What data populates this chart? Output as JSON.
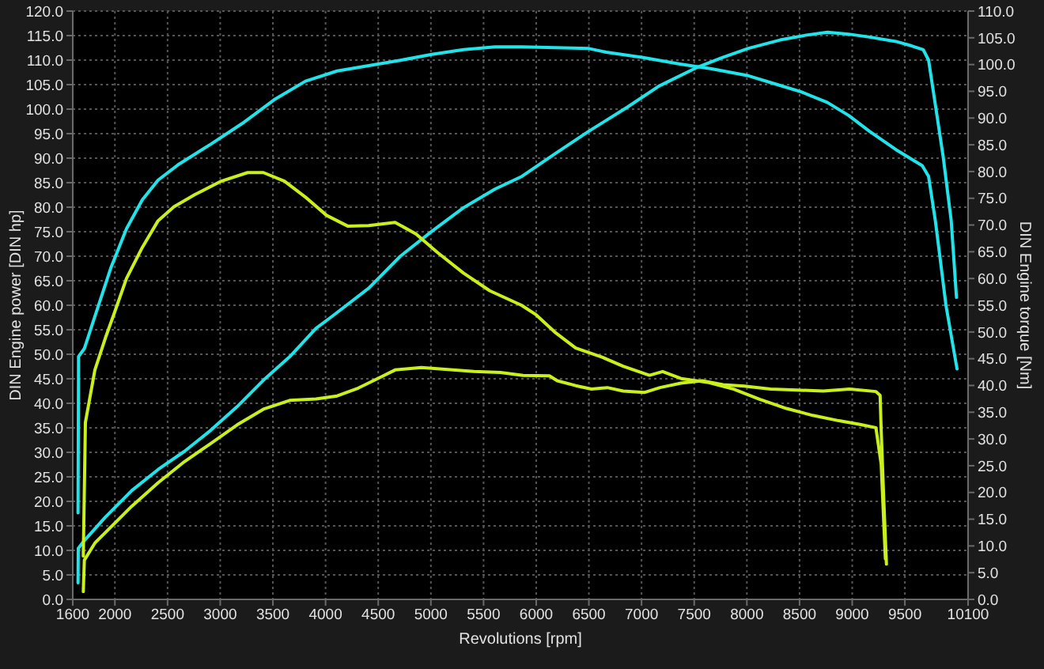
{
  "chart_data": {
    "type": "line",
    "xlabel": "Revolutions [rpm]",
    "ylabel": "DIN Engine power [DIN hp]",
    "y2label": "DIN Engine torque [Nm]",
    "xlim": [
      1600,
      10100
    ],
    "xticks": [
      1600,
      2000,
      2500,
      3000,
      3500,
      4000,
      4500,
      5000,
      5500,
      6000,
      6500,
      7000,
      7500,
      8000,
      8500,
      9000,
      9500,
      10100
    ],
    "ylim": [
      0,
      120
    ],
    "yticks": [
      {
        "value": 0,
        "label": "0.0"
      },
      {
        "value": 5,
        "label": "5.0"
      },
      {
        "value": 10,
        "label": "10.0"
      },
      {
        "value": 15,
        "label": "15.0"
      },
      {
        "value": 20,
        "label": "20.0"
      },
      {
        "value": 25,
        "label": "25.0"
      },
      {
        "value": 30,
        "label": "30.0"
      },
      {
        "value": 35,
        "label": "35.0"
      },
      {
        "value": 40,
        "label": "40.0"
      },
      {
        "value": 45,
        "label": "45.0"
      },
      {
        "value": 50,
        "label": "50.0"
      },
      {
        "value": 55,
        "label": "55.0"
      },
      {
        "value": 60,
        "label": "60.0"
      },
      {
        "value": 65,
        "label": "65.0"
      },
      {
        "value": 70,
        "label": "70.0"
      },
      {
        "value": 75,
        "label": "75.0"
      },
      {
        "value": 80,
        "label": "80.0"
      },
      {
        "value": 85,
        "label": "85.0"
      },
      {
        "value": 90,
        "label": "90.0"
      },
      {
        "value": 95,
        "label": "95.0"
      },
      {
        "value": 100,
        "label": "100.0"
      },
      {
        "value": 105,
        "label": "105.0"
      },
      {
        "value": 110,
        "label": "110.0"
      },
      {
        "value": 115,
        "label": "115.0"
      },
      {
        "value": 120,
        "label": "120.0"
      }
    ],
    "y2lim": [
      0,
      110
    ],
    "y2ticks": [
      {
        "value": 0,
        "label": "0.0"
      },
      {
        "value": 5,
        "label": "5.0"
      },
      {
        "value": 10,
        "label": "10.0"
      },
      {
        "value": 15,
        "label": "15.0"
      },
      {
        "value": 20,
        "label": "20.0"
      },
      {
        "value": 25,
        "label": "25.0"
      },
      {
        "value": 30,
        "label": "30.0"
      },
      {
        "value": 35,
        "label": "35.0"
      },
      {
        "value": 40,
        "label": "40.0"
      },
      {
        "value": 45,
        "label": "45.0"
      },
      {
        "value": 50,
        "label": "50.0"
      },
      {
        "value": 55,
        "label": "55.0"
      },
      {
        "value": 60,
        "label": "60.0"
      },
      {
        "value": 65,
        "label": "65.0"
      },
      {
        "value": 70,
        "label": "70.0"
      },
      {
        "value": 75,
        "label": "75.0"
      },
      {
        "value": 80,
        "label": "80.0"
      },
      {
        "value": 85,
        "label": "85.0"
      },
      {
        "value": 90,
        "label": "90.0"
      },
      {
        "value": 95,
        "label": "95.0"
      },
      {
        "value": 100,
        "label": "100.0"
      },
      {
        "value": 105,
        "label": "105.0"
      },
      {
        "value": 110,
        "label": "110.0"
      }
    ],
    "grid": true,
    "marker": "none",
    "line_style": "solid",
    "series": [
      {
        "color": "#21e3ea",
        "x": [
          1650,
          1652,
          1710,
          1910,
          2160,
          2410,
          2660,
          2910,
          3160,
          3410,
          3660,
          3910,
          4060,
          4410,
          4710,
          5010,
          5310,
          5610,
          5865,
          6165,
          6500,
          6865,
          7165,
          7515,
          7765,
          8015,
          8315,
          8565,
          8765,
          8965,
          9165,
          9415,
          9565,
          9675,
          9725,
          9790,
          9865,
          9940,
          9990
        ],
        "values": [
          3.4,
          10.4,
          12.0,
          16.8,
          22.2,
          26.5,
          30.2,
          34.5,
          39.3,
          44.7,
          49.5,
          55.3,
          57.7,
          63.5,
          70.0,
          75.1,
          79.9,
          83.7,
          86.3,
          90.7,
          95.5,
          100.4,
          104.7,
          108.4,
          110.5,
          112.4,
          114.1,
          115.1,
          115.7,
          115.3,
          114.7,
          113.8,
          112.9,
          112.1,
          110.0,
          100.8,
          90.1,
          77.2,
          61.6
        ]
      },
      {
        "color": "#21e3ea",
        "axis": "y2",
        "x": [
          1650,
          1655,
          1710,
          1810,
          1960,
          2110,
          2260,
          2410,
          2610,
          2910,
          3210,
          3510,
          3810,
          4110,
          4410,
          4710,
          5010,
          5310,
          5610,
          5865,
          6500,
          6665,
          7015,
          7365,
          7665,
          8015,
          8265,
          8515,
          8765,
          8965,
          9165,
          9415,
          9665,
          9725,
          9790,
          9840,
          9890,
          9995
        ],
        "values": [
          16.2,
          45.4,
          46.9,
          52.9,
          61.9,
          69.3,
          74.7,
          78.4,
          81.4,
          85.1,
          89.0,
          93.4,
          96.9,
          98.8,
          99.8,
          100.8,
          101.9,
          102.8,
          103.3,
          103.3,
          103.0,
          102.3,
          101.3,
          100.1,
          99.2,
          97.9,
          96.4,
          94.9,
          92.9,
          90.5,
          87.5,
          84.1,
          81.1,
          79.1,
          70.7,
          62.9,
          55.0,
          43.1
        ]
      },
      {
        "color": "#c9f01c",
        "x": [
          1700,
          1710,
          1810,
          2010,
          2160,
          2410,
          2660,
          2910,
          3160,
          3410,
          3660,
          3910,
          4110,
          4310,
          4510,
          4660,
          4910,
          5160,
          5410,
          5660,
          5875,
          6125,
          6200,
          6375,
          6525,
          6675,
          6825,
          7025,
          7175,
          7375,
          7575,
          7775,
          7975,
          8225,
          8475,
          8725,
          8975,
          9225,
          9265,
          9275,
          9300,
          9325
        ],
        "values": [
          1.6,
          8.0,
          11.5,
          15.8,
          19.0,
          23.8,
          28.1,
          31.8,
          35.6,
          38.8,
          40.6,
          40.9,
          41.5,
          43.1,
          45.2,
          46.8,
          47.3,
          46.9,
          46.5,
          46.3,
          45.7,
          45.6,
          44.6,
          43.6,
          42.9,
          43.2,
          42.5,
          42.2,
          43.2,
          44.1,
          44.6,
          43.8,
          43.5,
          42.9,
          42.7,
          42.5,
          42.9,
          42.4,
          41.6,
          34.6,
          20.1,
          7.2
        ]
      },
      {
        "color": "#c9f01c",
        "axis": "y2",
        "x": [
          1700,
          1720,
          1810,
          1910,
          1985,
          2110,
          2260,
          2410,
          2560,
          2760,
          3010,
          3260,
          3410,
          3610,
          3810,
          4010,
          4210,
          4410,
          4660,
          4860,
          5060,
          5310,
          5560,
          5860,
          6000,
          6175,
          6375,
          6625,
          6825,
          7075,
          7200,
          7375,
          7625,
          7875,
          8125,
          8375,
          8625,
          8875,
          9075,
          9225,
          9275,
          9315
        ],
        "values": [
          8.1,
          33.1,
          42.9,
          48.9,
          53.0,
          60.0,
          65.8,
          70.8,
          73.4,
          75.7,
          78.2,
          79.8,
          79.8,
          78.2,
          75.2,
          71.8,
          69.8,
          69.9,
          70.5,
          68.3,
          64.9,
          61.0,
          57.7,
          55.0,
          53.2,
          50.0,
          47.0,
          45.3,
          43.6,
          41.9,
          42.6,
          41.3,
          40.6,
          39.3,
          37.4,
          35.7,
          34.4,
          33.4,
          32.7,
          32.1,
          25.3,
          7.6
        ]
      }
    ]
  }
}
